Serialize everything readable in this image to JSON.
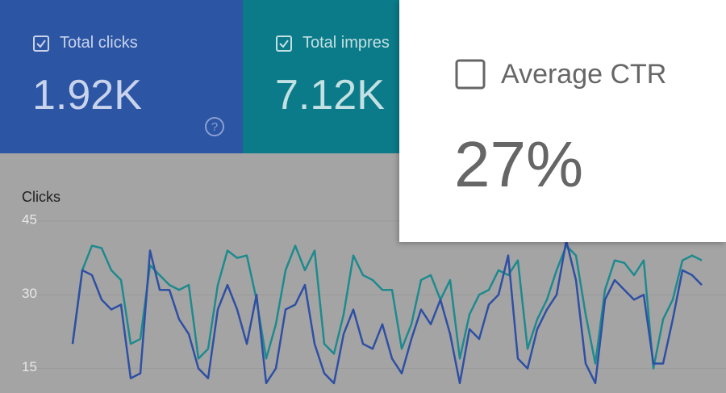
{
  "cards": [
    {
      "label": "Total clicks",
      "value": "1.92K",
      "checked": true
    },
    {
      "label": "Total impres",
      "value": "7.12K",
      "checked": true
    },
    {
      "label": "Average CTR",
      "value": "27%",
      "checked": false
    }
  ],
  "chart_data": {
    "type": "line",
    "y_label": "Clicks",
    "ylim": [
      10,
      45
    ],
    "yticks": [
      15,
      30,
      45
    ],
    "grid": true,
    "categories": [
      null,
      null,
      null,
      null,
      null,
      null,
      null,
      null,
      null,
      null,
      null,
      null,
      null,
      null,
      null,
      null,
      null,
      null,
      null,
      null,
      null,
      null,
      null,
      null,
      null,
      null,
      null,
      null,
      null,
      null,
      null,
      null,
      null,
      null,
      null,
      null,
      null,
      null,
      null,
      null,
      null,
      null,
      null,
      null,
      null,
      null,
      null,
      null,
      null,
      null,
      null,
      null,
      null,
      null,
      null,
      null,
      null,
      null,
      null,
      null,
      null,
      null,
      null,
      null,
      null,
      null
    ],
    "series": [
      {
        "color": "#1e8a8e",
        "values": [
          20,
          35,
          40,
          39.5,
          35,
          33,
          20,
          21,
          36,
          34,
          32,
          31,
          32,
          17,
          19,
          32,
          39,
          37.5,
          38,
          29,
          17,
          24,
          35,
          40,
          35,
          39,
          20,
          18,
          26,
          38,
          34,
          33,
          31,
          31,
          19,
          24,
          33,
          34,
          29,
          33,
          17,
          26,
          30,
          31,
          35,
          34,
          37,
          19,
          25,
          29,
          35,
          40,
          38,
          26,
          16,
          31,
          37,
          36.5,
          34,
          37,
          15,
          25,
          29,
          37,
          38,
          37
        ]
      },
      {
        "color": "#2e4fa3",
        "values": [
          20,
          35,
          34,
          29,
          27,
          28,
          13,
          14,
          39,
          31,
          31,
          25,
          22,
          15,
          13,
          27,
          32,
          27,
          20,
          30,
          12,
          15,
          27,
          28,
          32,
          20,
          14,
          12,
          22,
          27,
          20,
          19,
          24,
          17,
          14,
          21,
          27,
          24,
          29,
          22,
          12,
          23,
          21,
          28,
          30,
          38,
          17,
          15,
          23,
          27,
          30,
          41,
          33,
          16,
          12,
          29,
          33,
          31,
          29,
          30,
          16,
          16,
          25,
          35,
          34,
          32
        ]
      }
    ]
  }
}
